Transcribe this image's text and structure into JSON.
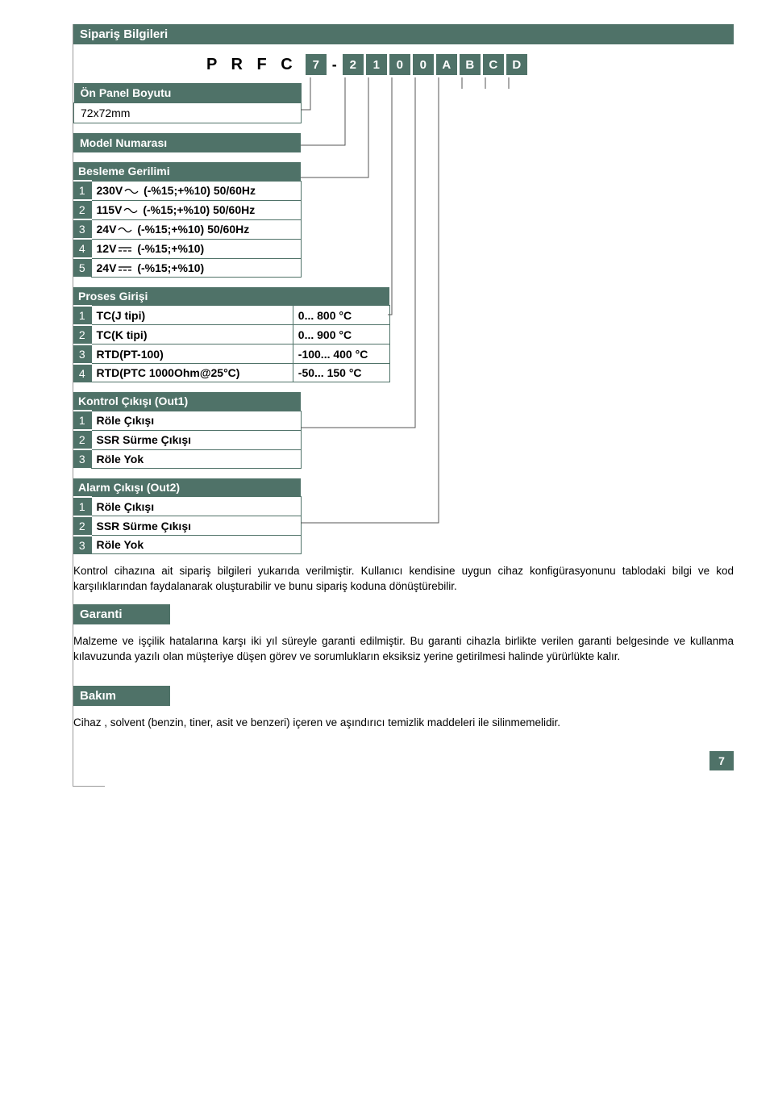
{
  "colors": {
    "accent": "#4f7268",
    "text": "#000",
    "bg": "#fff",
    "lines": "#555"
  },
  "pageNumber": "7",
  "sections": {
    "orderInfo": {
      "title": "Sipariş Bilgileri"
    },
    "code": {
      "label": "P R F C",
      "boxes": [
        "7",
        "-",
        "2",
        "1",
        "0",
        "0",
        "A",
        "B",
        "C",
        "D"
      ]
    },
    "panelSize": {
      "title": "Ön Panel Boyutu",
      "value": "72x72mm"
    },
    "modelNo": {
      "title": "Model Numarası"
    },
    "supply": {
      "title": "Besleme Gerilimi",
      "rows": [
        {
          "n": "1",
          "t": "230V",
          "sym": "ac",
          "s": "(-%15;+%10) 50/60Hz"
        },
        {
          "n": "2",
          "t": "115V",
          "sym": "ac",
          "s": "(-%15;+%10) 50/60Hz"
        },
        {
          "n": "3",
          "t": "24V",
          "sym": "ac",
          "s": "(-%15;+%10) 50/60Hz"
        },
        {
          "n": "4",
          "t": "12V",
          "sym": "dc",
          "s": "(-%15;+%10)"
        },
        {
          "n": "5",
          "t": "24V",
          "sym": "dc",
          "s": "(-%15;+%10)"
        }
      ]
    },
    "process": {
      "title": "Proses Girişi",
      "rows": [
        {
          "n": "1",
          "t": "TC(J tipi)",
          "v": "0... 800 °C"
        },
        {
          "n": "2",
          "t": "TC(K tipi)",
          "v": "0... 900 °C"
        },
        {
          "n": "3",
          "t": "RTD(PT-100)",
          "v": "-100... 400 °C"
        },
        {
          "n": "4",
          "t": "RTD(PTC 1000Ohm@25°C)",
          "v": "-50... 150 °C"
        }
      ]
    },
    "out1": {
      "title": "Kontrol Çıkışı (Out1)",
      "rows": [
        {
          "n": "1",
          "t": "Röle Çıkışı"
        },
        {
          "n": "2",
          "t": "SSR Sürme Çıkışı"
        },
        {
          "n": "3",
          "t": "Röle Yok"
        }
      ]
    },
    "out2": {
      "title": "Alarm Çıkışı (Out2)",
      "rows": [
        {
          "n": "1",
          "t": "Röle Çıkışı"
        },
        {
          "n": "2",
          "t": "SSR Sürme Çıkışı"
        },
        {
          "n": "3",
          "t": "Röle Yok"
        }
      ]
    }
  },
  "bodyText1": "Kontrol cihazına ait sipariş bilgileri yukarıda verilmiştir. Kullanıcı kendisine uygun cihaz konfigürasyonunu tablodaki bilgi ve kod karşılıklarından faydalanarak oluşturabilir ve bunu sipariş koduna dönüştürebilir.",
  "warranty": {
    "title": "Garanti",
    "text": "Malzeme ve işçilik hatalarına karşı iki yıl süreyle garanti edilmiştir. Bu garanti cihazla birlikte verilen garanti belgesinde ve kullanma kılavuzunda yazılı olan  müşteriye düşen görev ve sorumlukların eksiksiz yerine getirilmesi halinde yürürlükte kalır."
  },
  "maintenance": {
    "title": "Bakım",
    "text": "Cihaz , solvent (benzin, tiner, asit ve benzeri) içeren ve aşındırıcı temizlik maddeleri ile silinmemelidir."
  }
}
